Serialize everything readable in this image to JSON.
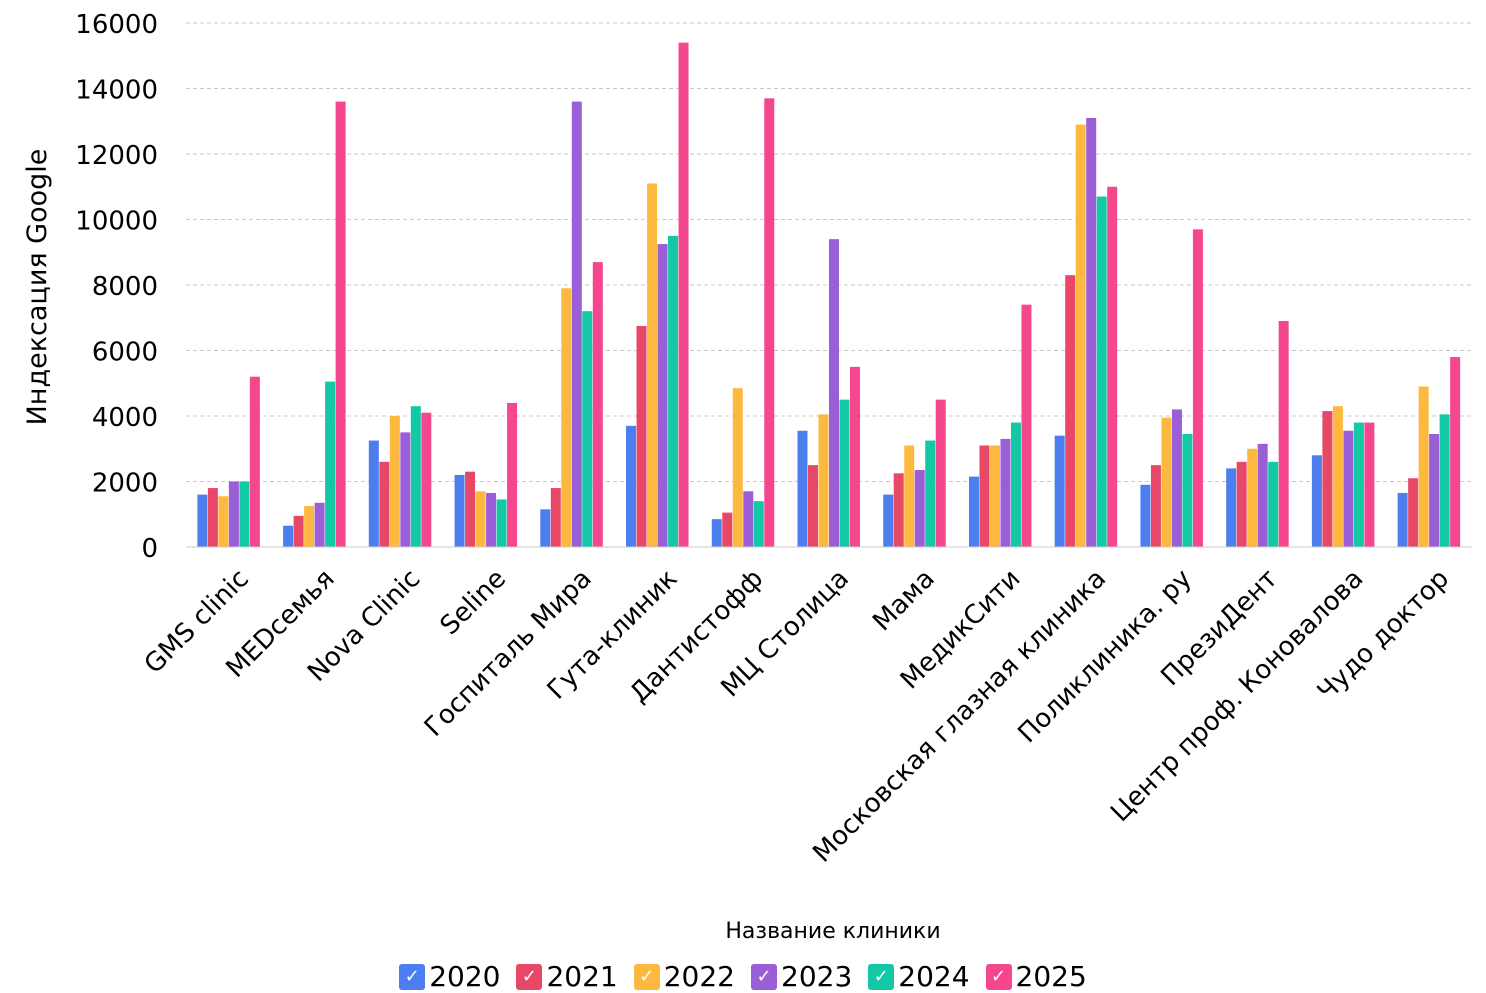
{
  "chart_data": {
    "type": "bar",
    "title": "",
    "xlabel": "Название клиники",
    "ylabel": "Индексация Google",
    "ylim": [
      0,
      16000
    ],
    "yticks": [
      0,
      2000,
      4000,
      6000,
      8000,
      10000,
      12000,
      14000,
      16000
    ],
    "grid": true,
    "legend_position": "bottom",
    "categories": [
      "GMS clinic",
      "MEDсемья",
      "Nova Clinic",
      "Seline",
      "Госпиталь Мира",
      "Гута-клиник",
      "Дантистофф",
      "МЦ Столица",
      "Мама",
      "МедикСити",
      "Московская глазная клиника",
      "Поликлиника. ру",
      "ПрезиДент",
      "Центр проф. Коновалова",
      "Чудо доктор"
    ],
    "series": [
      {
        "name": "2020",
        "color": "#4d7ef0",
        "values": [
          1600,
          650,
          3250,
          2200,
          1150,
          3700,
          850,
          3550,
          1600,
          2150,
          3400,
          1900,
          2400,
          2800,
          1650
        ]
      },
      {
        "name": "2021",
        "color": "#e84868",
        "values": [
          1800,
          950,
          2600,
          2300,
          1800,
          6750,
          1050,
          2500,
          2250,
          3100,
          8300,
          2500,
          2600,
          4150,
          2100
        ]
      },
      {
        "name": "2022",
        "color": "#fdb83f",
        "values": [
          1550,
          1250,
          4000,
          1700,
          7900,
          11100,
          4850,
          4050,
          3100,
          3100,
          12900,
          3950,
          3000,
          4300,
          4900
        ]
      },
      {
        "name": "2023",
        "color": "#9a5ed6",
        "values": [
          2000,
          1350,
          3500,
          1650,
          13600,
          9250,
          1700,
          9400,
          2350,
          3300,
          13100,
          4200,
          3150,
          3550,
          3450
        ]
      },
      {
        "name": "2024",
        "color": "#13c8a4",
        "values": [
          2000,
          5050,
          4300,
          1450,
          7200,
          9500,
          1400,
          4500,
          3250,
          3800,
          10700,
          3450,
          2600,
          3800,
          4050
        ]
      },
      {
        "name": "2025",
        "color": "#f5478d",
        "values": [
          5200,
          13600,
          4100,
          4400,
          8700,
          15400,
          13700,
          5500,
          4500,
          7400,
          11000,
          9700,
          6900,
          3800,
          5800
        ]
      }
    ]
  },
  "legend_check": "✓"
}
